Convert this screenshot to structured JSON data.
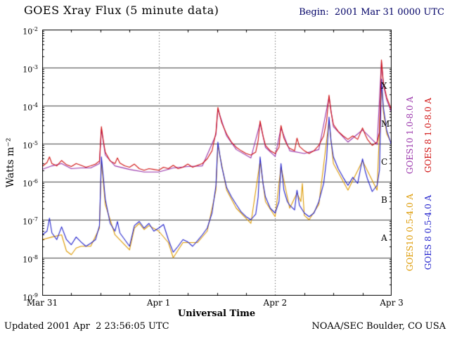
{
  "header": {
    "begin_label": "Begin:  2001 Mar 31 0000 UTC"
  },
  "footer": {
    "updated": "Updated 2001 Apr  2 23:56:05 UTC",
    "source": "NOAA/SEC Boulder, CO USA"
  },
  "colors": {
    "begin_text": "#000066",
    "grid": "#444444",
    "axis": "#000000"
  },
  "chart_data": {
    "type": "line",
    "title": "GOES Xray Flux (5 minute data)",
    "xlabel": "Universal Time",
    "ylabel": "Watts m⁻²",
    "y_scale": "log",
    "ylim": [
      1e-09,
      0.01
    ],
    "x_range_hours": [
      0,
      72
    ],
    "grid": {
      "horizontal": "solid line per decade",
      "vertical": "dotted line per day"
    },
    "legend_position": "right margin, rotated 90 degrees",
    "xticks": [
      {
        "hours": 0,
        "label": "Mar 31"
      },
      {
        "hours": 24,
        "label": "Apr 1"
      },
      {
        "hours": 48,
        "label": "Apr 2"
      },
      {
        "hours": 72,
        "label": "Apr 3"
      }
    ],
    "ytick_exponents": [
      -2,
      -3,
      -4,
      -5,
      -6,
      -7,
      -8,
      -9
    ],
    "flux_classes": [
      {
        "letter": "X",
        "log_center": -3.5
      },
      {
        "letter": "M",
        "log_center": -4.5
      },
      {
        "letter": "C",
        "log_center": -5.5
      },
      {
        "letter": "B",
        "log_center": -6.5
      },
      {
        "letter": "A",
        "log_center": -7.5
      }
    ],
    "legend": [
      {
        "id": "goes10-long",
        "label": "GOES10 1.0-8.0 A",
        "color": "#9933aa",
        "slot": "inner-top"
      },
      {
        "id": "goes8-long",
        "label": "GOES 8 1.0-8.0 A",
        "color": "#d01010",
        "slot": "outer-top"
      },
      {
        "id": "goes10-short",
        "label": "GOES10 0.5-4.0 A",
        "color": "#dd9900",
        "slot": "inner-bottom"
      },
      {
        "id": "goes8-short",
        "label": "GOES 8 0.5-4.0 A",
        "color": "#2222cc",
        "slot": "outer-bottom"
      }
    ],
    "series": [
      {
        "name": "GOES10 1.0-8.0 A",
        "color": "#9933aa",
        "x_hours": [
          0,
          2,
          4,
          6,
          8,
          10,
          11.8,
          12.2,
          13,
          15,
          18,
          21,
          24,
          27,
          30,
          33,
          35.8,
          36.2,
          38,
          40,
          43,
          44.9,
          46,
          48,
          49.2,
          51,
          54,
          57,
          59.1,
          60,
          63,
          66,
          69,
          69.9,
          70.3,
          71,
          72
        ],
        "flux": [
          2.1e-06,
          2.6e-06,
          3e-06,
          2.2e-06,
          2.3e-06,
          2.3e-06,
          3e-06,
          2.4e-05,
          5e-06,
          2.6e-06,
          2.1e-06,
          1.8e-06,
          1.8e-06,
          2.3e-06,
          2.5e-06,
          2.6e-06,
          1.7e-05,
          8e-05,
          1.6e-05,
          7e-06,
          4.2e-06,
          3.5e-05,
          8e-06,
          4.6e-06,
          2.6e-05,
          6.5e-06,
          5.5e-06,
          7e-06,
          0.00017,
          2.8e-05,
          1.1e-05,
          2.3e-05,
          9.5e-06,
          0.00145,
          0.00035,
          0.00014,
          6.5e-05
        ]
      },
      {
        "name": "GOES10 0.5-4.0 A",
        "color": "#dd9900",
        "x_hours": [
          0,
          2,
          4,
          5,
          6,
          7,
          8,
          10,
          11.8,
          12.2,
          13,
          15,
          18,
          19,
          20,
          21,
          22,
          24,
          26,
          27,
          29,
          32,
          34,
          35.8,
          36.2,
          38,
          40,
          43,
          44.9,
          46,
          48,
          49.2,
          51,
          52.5,
          53.3,
          53.6,
          54,
          55,
          57,
          59.1,
          60,
          63,
          66,
          69,
          69.9,
          70.3,
          71,
          72
        ],
        "flux": [
          3e-08,
          3.5e-08,
          4e-08,
          1.5e-08,
          1.2e-08,
          1.8e-08,
          2e-08,
          2e-08,
          6e-08,
          3.5e-06,
          2.5e-07,
          4e-08,
          1.6e-08,
          6e-08,
          8e-08,
          5.5e-08,
          7e-08,
          5e-08,
          2.5e-08,
          1e-08,
          2.5e-08,
          2.5e-08,
          5e-08,
          6e-07,
          9e-06,
          6e-07,
          2e-07,
          8e-08,
          3.5e-06,
          3e-07,
          1.2e-07,
          2.5e-06,
          2e-07,
          5e-07,
          3e-07,
          9e-07,
          1.3e-07,
          1e-07,
          2.5e-07,
          4e-05,
          3e-06,
          6e-07,
          3.5e-06,
          6e-07,
          0.00045,
          7e-05,
          1.8e-05,
          1e-05
        ]
      },
      {
        "name": "GOES 8 0.5-4.0 A",
        "color": "#2222cc",
        "x_hours": [
          0,
          1,
          1.5,
          2,
          3,
          4,
          5,
          6,
          7,
          8,
          9,
          10,
          11,
          11.8,
          12.2,
          12.6,
          13,
          14,
          15,
          15.5,
          16,
          17,
          18,
          19,
          20,
          21,
          22,
          23,
          24,
          25,
          26,
          27,
          28,
          29,
          30,
          31,
          32,
          33,
          34,
          35,
          35.8,
          36.2,
          36.6,
          37,
          38,
          39,
          40,
          41,
          42,
          43,
          44,
          44.5,
          44.9,
          45.5,
          46,
          47,
          48,
          48.8,
          49.2,
          49.8,
          50.5,
          51,
          52,
          52.5,
          53,
          54,
          55,
          56,
          57,
          58,
          58.6,
          59.1,
          59.5,
          60,
          61,
          62,
          63,
          64,
          65,
          66,
          66.5,
          67,
          68,
          69,
          69.5,
          69.9,
          70.3,
          71,
          71.5,
          72
        ],
        "flux": [
          4e-08,
          5e-08,
          1.1e-07,
          4.5e-08,
          3e-08,
          6.5e-08,
          3e-08,
          2.2e-08,
          3.5e-08,
          2.6e-08,
          2e-08,
          2.4e-08,
          3e-08,
          7e-08,
          4.5e-06,
          1.3e-06,
          3.5e-07,
          8e-08,
          5e-08,
          9e-08,
          4.5e-08,
          3e-08,
          2e-08,
          7e-08,
          9e-08,
          6e-08,
          8e-08,
          5e-08,
          6e-08,
          7.5e-08,
          3e-08,
          1.4e-08,
          2e-08,
          3e-08,
          2.6e-08,
          2e-08,
          2.8e-08,
          4e-08,
          6e-08,
          1.5e-07,
          8e-07,
          1.1e-05,
          5e-06,
          2.5e-06,
          7e-07,
          4e-07,
          2.5e-07,
          1.6e-07,
          1.2e-07,
          1e-07,
          1.4e-07,
          4e-07,
          4.5e-06,
          9e-07,
          4e-07,
          2e-07,
          1.5e-07,
          3e-07,
          3e-06,
          6e-07,
          3e-07,
          2.4e-07,
          1.8e-07,
          6e-07,
          2.4e-07,
          1.5e-07,
          1.2e-07,
          1.5e-07,
          3e-07,
          9e-07,
          4e-06,
          5e-05,
          1.2e-05,
          4.5e-06,
          2.2e-06,
          1.3e-06,
          8e-07,
          1.3e-06,
          9e-07,
          4e-06,
          2e-06,
          1.2e-06,
          5.5e-07,
          8e-07,
          2e-06,
          0.0005,
          9e-05,
          2.2e-05,
          1.4e-05,
          9e-06
        ]
      },
      {
        "name": "GOES 8 1.0-8.0 A",
        "color": "#d01010",
        "x_hours": [
          0,
          1,
          1.5,
          2,
          3,
          4,
          5,
          6,
          7,
          8,
          9,
          10,
          11,
          11.8,
          12.2,
          12.6,
          13,
          14,
          15,
          15.5,
          16,
          17,
          18,
          19,
          20,
          21,
          22,
          23,
          24,
          25,
          26,
          27,
          28,
          29,
          30,
          31,
          32,
          33,
          34,
          35,
          35.8,
          36.2,
          36.6,
          37,
          38,
          39,
          40,
          41,
          42,
          43,
          44,
          44.5,
          44.9,
          45.5,
          46,
          47,
          48,
          48.8,
          49.2,
          49.8,
          50.5,
          51,
          52,
          52.5,
          53,
          54,
          55,
          56,
          57,
          58,
          58.6,
          59.1,
          59.5,
          60,
          61,
          62,
          63,
          64,
          65,
          66,
          66.5,
          67,
          68,
          69,
          69.5,
          69.9,
          70.3,
          71,
          71.5,
          72
        ],
        "flux": [
          2.5e-06,
          3.2e-06,
          4.5e-06,
          3e-06,
          2.6e-06,
          3.6e-06,
          2.8e-06,
          2.5e-06,
          3e-06,
          2.7e-06,
          2.4e-06,
          2.6e-06,
          2.9e-06,
          3.5e-06,
          2.8e-05,
          1.2e-05,
          6e-06,
          3.5e-06,
          3e-06,
          4.2e-06,
          3.1e-06,
          2.6e-06,
          2.4e-06,
          2.9e-06,
          2.2e-06,
          2e-06,
          2.2e-06,
          2.1e-06,
          2e-06,
          2.4e-06,
          2.2e-06,
          2.7e-06,
          2.2e-06,
          2.4e-06,
          2.9e-06,
          2.4e-06,
          2.7e-06,
          3e-06,
          4e-06,
          6.5e-06,
          2e-05,
          9e-05,
          5.5e-05,
          3.5e-05,
          1.8e-05,
          1.1e-05,
          8e-06,
          6.5e-06,
          5.5e-06,
          5e-06,
          6e-06,
          1.2e-05,
          4e-05,
          1.6e-05,
          9e-06,
          6.5e-06,
          5.5e-06,
          8e-06,
          3e-05,
          1.4e-05,
          9e-06,
          7.5e-06,
          6.5e-06,
          1.4e-05,
          8.5e-06,
          6.5e-06,
          5.5e-06,
          6.5e-06,
          9e-06,
          1.6e-05,
          4e-05,
          0.00019,
          7e-05,
          3.2e-05,
          2.1e-05,
          1.6e-05,
          1.3e-05,
          1.6e-05,
          1.3e-05,
          2.6e-05,
          1.8e-05,
          1.3e-05,
          9e-06,
          1.1e-05,
          2e-05,
          0.0016,
          0.0004,
          0.00016,
          0.00011,
          7.5e-05
        ]
      }
    ]
  }
}
